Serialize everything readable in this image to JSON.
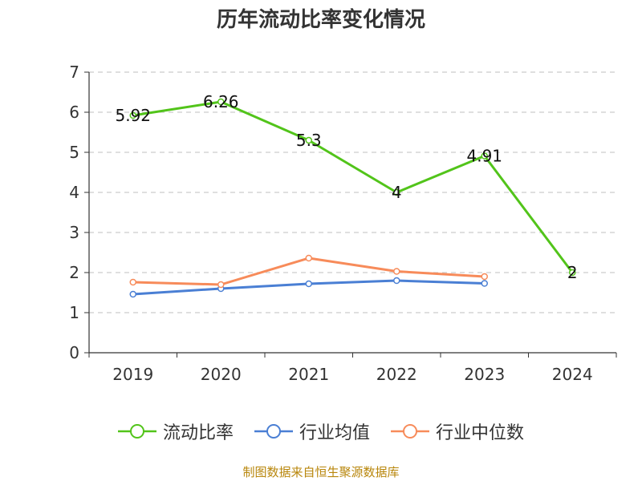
{
  "chart_data": {
    "type": "line",
    "title": "历年流动比率变化情况",
    "categories": [
      "2019",
      "2020",
      "2021",
      "2022",
      "2023",
      "2024"
    ],
    "ylim": [
      0,
      7
    ],
    "yticks": [
      0,
      1,
      2,
      3,
      4,
      5,
      6,
      7
    ],
    "grid": true,
    "legend_position": "bottom",
    "series": [
      {
        "name": "流动比率",
        "color": "#52c41a",
        "values": [
          5.92,
          6.26,
          5.3,
          4,
          4.91,
          2
        ],
        "labels": [
          "5.92",
          "6.26",
          "5.3",
          "4",
          "4.91",
          "2"
        ]
      },
      {
        "name": "行业均值",
        "color": "#4a7fd4",
        "values": [
          1.46,
          1.6,
          1.72,
          1.8,
          1.73,
          null
        ]
      },
      {
        "name": "行业中位数",
        "color": "#f78b5a",
        "values": [
          1.76,
          1.7,
          2.36,
          2.03,
          1.9,
          null
        ]
      }
    ]
  },
  "source": "制图数据来自恒生聚源数据库"
}
